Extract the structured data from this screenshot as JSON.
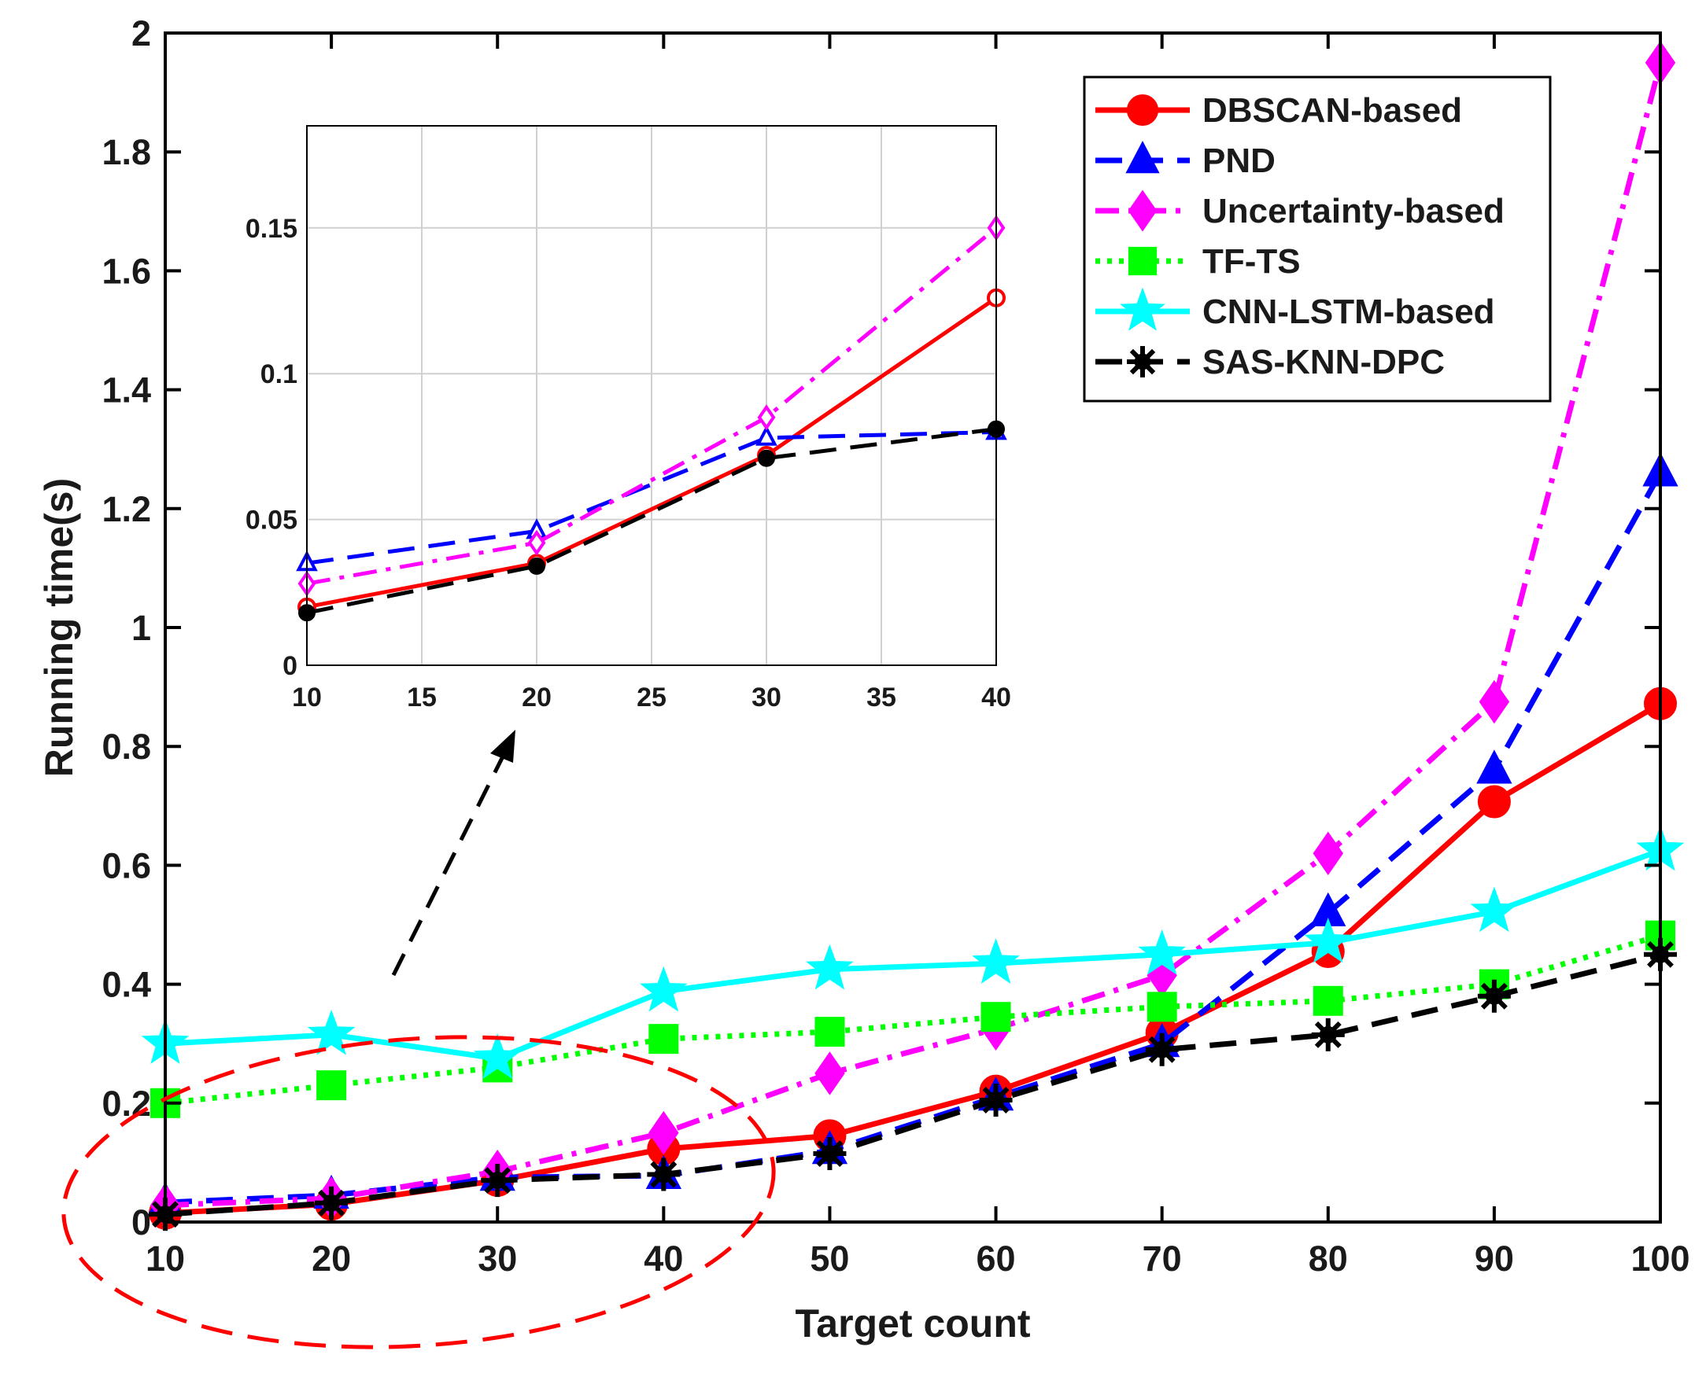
{
  "chart_data": {
    "type": "line",
    "xlabel": "Target count",
    "ylabel": "Running time(s)",
    "xlim": [
      10,
      100
    ],
    "ylim": [
      0,
      2
    ],
    "x": [
      10,
      20,
      30,
      40,
      50,
      60,
      70,
      80,
      90,
      100
    ],
    "xticks": [
      "10",
      "20",
      "30",
      "40",
      "50",
      "60",
      "70",
      "80",
      "90",
      "100"
    ],
    "yticks": [
      "0",
      "0.2",
      "0.4",
      "0.6",
      "0.8",
      "1",
      "1.2",
      "1.4",
      "1.6",
      "1.8",
      "2"
    ],
    "legend_position": "top-right",
    "series": [
      {
        "name": "DBSCAN-based",
        "color": "#ff0000",
        "dash": "solid",
        "marker": "circle",
        "values": [
          0.015,
          0.03,
          0.07,
          0.123,
          0.145,
          0.22,
          0.318,
          0.455,
          0.707,
          0.872
        ]
      },
      {
        "name": "PND",
        "color": "#0000ff",
        "dash": "dashed",
        "marker": "triangle",
        "values": [
          0.033,
          0.045,
          0.075,
          0.078,
          0.12,
          0.21,
          0.3,
          0.52,
          0.76,
          1.26
        ]
      },
      {
        "name": "Uncertainty-based",
        "color": "#ff00ff",
        "dash": "dashdot",
        "marker": "diamond",
        "values": [
          0.028,
          0.04,
          0.085,
          0.15,
          0.25,
          0.325,
          0.415,
          0.62,
          0.875,
          1.95
        ]
      },
      {
        "name": "TF-TS",
        "color": "#00ff00",
        "dash": "dotted",
        "marker": "square",
        "values": [
          0.2,
          0.23,
          0.26,
          0.308,
          0.32,
          0.345,
          0.362,
          0.372,
          0.4,
          0.482
        ]
      },
      {
        "name": "CNN-LSTM-based",
        "color": "#00ffff",
        "dash": "solid",
        "marker": "star",
        "values": [
          0.3,
          0.315,
          0.275,
          0.388,
          0.425,
          0.435,
          0.45,
          0.47,
          0.522,
          0.625
        ]
      },
      {
        "name": "SAS-KNN-DPC",
        "color": "#000000",
        "dash": "dashed",
        "marker": "asterisk",
        "values": [
          0.013,
          0.032,
          0.07,
          0.08,
          0.115,
          0.205,
          0.29,
          0.315,
          0.38,
          0.45
        ]
      }
    ],
    "inset": {
      "x": [
        10,
        20,
        30,
        40
      ],
      "xlim": [
        10,
        40
      ],
      "ylim": [
        0,
        0.185
      ],
      "xticks": [
        "10",
        "15",
        "20",
        "25",
        "30",
        "35",
        "40"
      ],
      "yticks": [
        "0",
        "0.05",
        "0.1",
        "0.15"
      ],
      "series": [
        {
          "name": "DBSCAN-based",
          "values": [
            0.02,
            0.035,
            0.072,
            0.126
          ]
        },
        {
          "name": "PND",
          "values": [
            0.035,
            0.046,
            0.078,
            0.08
          ]
        },
        {
          "name": "Uncertainty-based",
          "values": [
            0.028,
            0.042,
            0.085,
            0.15
          ]
        },
        {
          "name": "SAS-KNN-DPC",
          "values": [
            0.018,
            0.034,
            0.071,
            0.081
          ]
        }
      ]
    }
  }
}
